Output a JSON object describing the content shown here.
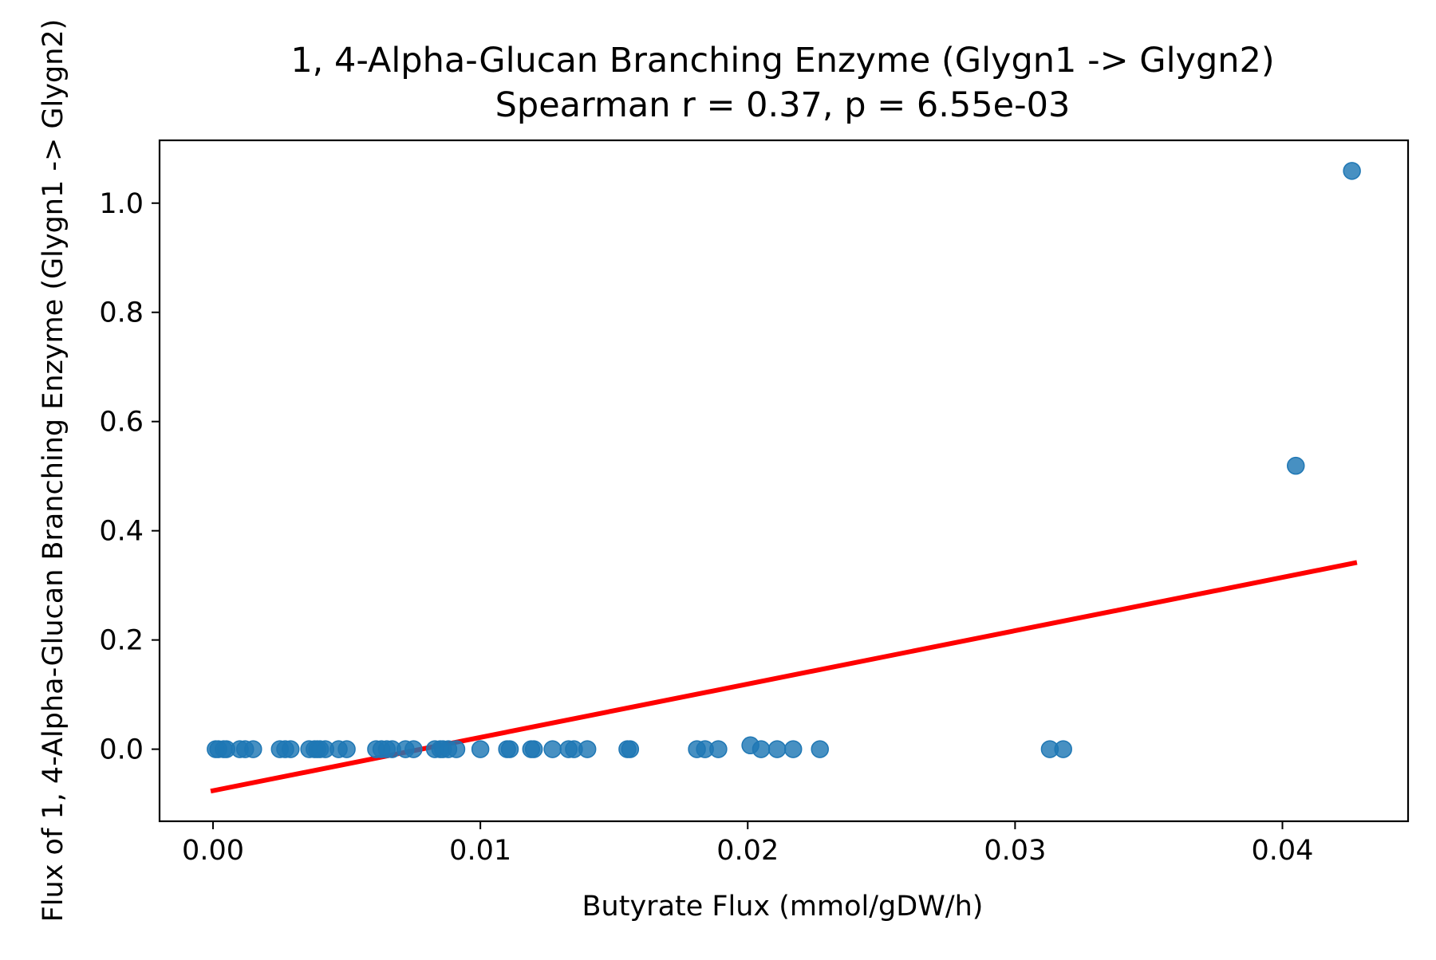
{
  "chart_data": {
    "type": "scatter",
    "title": "1, 4-Alpha-Glucan Branching Enzyme (Glygn1 -> Glygn2)",
    "subtitle": "Spearman r = 0.37, p = 6.55e-03",
    "xlabel": "Butyrate Flux (mmol/gDW/h)",
    "ylabel": "Flux of 1, 4-Alpha-Glucan Branching Enzyme (Glygn1 -> Glygn2)",
    "xlim": [
      -0.002,
      0.0447
    ],
    "ylim": [
      -0.132,
      1.115
    ],
    "x_ticks": [
      {
        "value": 0.0,
        "label": "0.00"
      },
      {
        "value": 0.01,
        "label": "0.01"
      },
      {
        "value": 0.02,
        "label": "0.02"
      },
      {
        "value": 0.03,
        "label": "0.03"
      },
      {
        "value": 0.04,
        "label": "0.04"
      }
    ],
    "y_ticks": [
      {
        "value": 0.0,
        "label": "0.0"
      },
      {
        "value": 0.2,
        "label": "0.2"
      },
      {
        "value": 0.4,
        "label": "0.4"
      },
      {
        "value": 0.6,
        "label": "0.6"
      },
      {
        "value": 0.8,
        "label": "0.8"
      },
      {
        "value": 1.0,
        "label": "1.0"
      }
    ],
    "grid": false,
    "legend": "none",
    "series": [
      {
        "color": "#1f77b4",
        "points": [
          {
            "x": 0.0001,
            "y": 0.0
          },
          {
            "x": 0.0002,
            "y": 0.0
          },
          {
            "x": 0.0004,
            "y": 0.0
          },
          {
            "x": 0.0005,
            "y": 0.0
          },
          {
            "x": 0.001,
            "y": 0.0
          },
          {
            "x": 0.0012,
            "y": 0.0
          },
          {
            "x": 0.0015,
            "y": 0.0
          },
          {
            "x": 0.0025,
            "y": 0.0
          },
          {
            "x": 0.0027,
            "y": 0.0
          },
          {
            "x": 0.0029,
            "y": 0.0
          },
          {
            "x": 0.0036,
            "y": 0.0
          },
          {
            "x": 0.0038,
            "y": 0.0
          },
          {
            "x": 0.0039,
            "y": 0.0
          },
          {
            "x": 0.004,
            "y": 0.0
          },
          {
            "x": 0.0042,
            "y": 0.0
          },
          {
            "x": 0.0047,
            "y": 0.0
          },
          {
            "x": 0.005,
            "y": 0.0
          },
          {
            "x": 0.0061,
            "y": 0.0
          },
          {
            "x": 0.0063,
            "y": 0.0
          },
          {
            "x": 0.0065,
            "y": 0.0
          },
          {
            "x": 0.0067,
            "y": 0.0
          },
          {
            "x": 0.0072,
            "y": 0.0
          },
          {
            "x": 0.0075,
            "y": 0.0
          },
          {
            "x": 0.0083,
            "y": 0.0
          },
          {
            "x": 0.0085,
            "y": 0.0
          },
          {
            "x": 0.0086,
            "y": 0.0
          },
          {
            "x": 0.0088,
            "y": 0.0
          },
          {
            "x": 0.0091,
            "y": 0.0
          },
          {
            "x": 0.01,
            "y": 0.0
          },
          {
            "x": 0.011,
            "y": 0.0
          },
          {
            "x": 0.0111,
            "y": 0.0
          },
          {
            "x": 0.0119,
            "y": 0.0
          },
          {
            "x": 0.012,
            "y": 0.0
          },
          {
            "x": 0.0127,
            "y": 0.0
          },
          {
            "x": 0.0133,
            "y": 0.0
          },
          {
            "x": 0.0135,
            "y": 0.0
          },
          {
            "x": 0.014,
            "y": 0.0
          },
          {
            "x": 0.0155,
            "y": 0.0
          },
          {
            "x": 0.0156,
            "y": 0.0
          },
          {
            "x": 0.0181,
            "y": 0.0
          },
          {
            "x": 0.0184,
            "y": 0.0
          },
          {
            "x": 0.0189,
            "y": 0.0
          },
          {
            "x": 0.0201,
            "y": 0.007
          },
          {
            "x": 0.0205,
            "y": 0.0
          },
          {
            "x": 0.0211,
            "y": 0.0
          },
          {
            "x": 0.0217,
            "y": 0.0
          },
          {
            "x": 0.0227,
            "y": 0.0
          },
          {
            "x": 0.0313,
            "y": 0.0
          },
          {
            "x": 0.0318,
            "y": 0.0
          },
          {
            "x": 0.0405,
            "y": 0.519
          },
          {
            "x": 0.0426,
            "y": 1.059
          }
        ]
      }
    ],
    "regression_line": {
      "color": "#ff0000",
      "x": [
        0.0,
        0.0427
      ],
      "y": [
        -0.076,
        0.341
      ]
    }
  }
}
